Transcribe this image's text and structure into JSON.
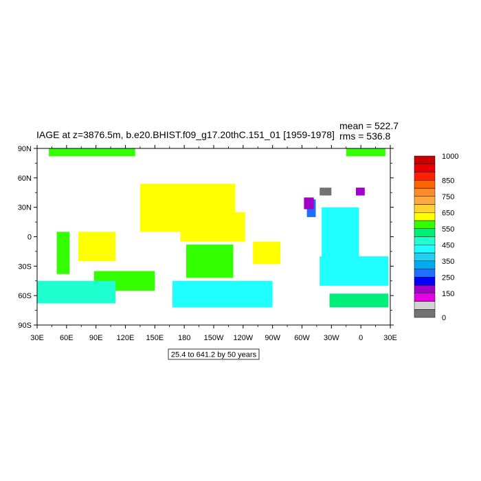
{
  "chart_data": {
    "type": "heatmap",
    "title": "IAGE at z=3876.5m, b.e20.BHIST.f09_g17.20thC.151_01 [1959-1978]",
    "stats": [
      "mean = 522.7",
      "rms = 536.8"
    ],
    "subtitle_box": "25.4 to 641.2 by 50 years",
    "x_range": [
      30,
      390
    ],
    "y_range": [
      -90,
      90
    ],
    "x_ticks": [
      {
        "value": 30,
        "label": "30E"
      },
      {
        "value": 60,
        "label": "60E"
      },
      {
        "value": 90,
        "label": "90E"
      },
      {
        "value": 120,
        "label": "120E"
      },
      {
        "value": 150,
        "label": "150E"
      },
      {
        "value": 180,
        "label": "180"
      },
      {
        "value": 210,
        "label": "150W"
      },
      {
        "value": 240,
        "label": "120W"
      },
      {
        "value": 270,
        "label": "90W"
      },
      {
        "value": 300,
        "label": "60W"
      },
      {
        "value": 330,
        "label": "30W"
      },
      {
        "value": 360,
        "label": "0"
      },
      {
        "value": 390,
        "label": "30E"
      }
    ],
    "y_ticks": [
      {
        "value": 90,
        "label": "90N"
      },
      {
        "value": 60,
        "label": "60N"
      },
      {
        "value": 30,
        "label": "30N"
      },
      {
        "value": 0,
        "label": "0"
      },
      {
        "value": -30,
        "label": "30S"
      },
      {
        "value": -60,
        "label": "60S"
      },
      {
        "value": -90,
        "label": "90S"
      }
    ],
    "colorbar": {
      "colors": [
        "#737373",
        "#d2d2d2",
        "#e600e6",
        "#a000c8",
        "#0000ff",
        "#1e6eff",
        "#00aaf0",
        "#20d0f0",
        "#20ffff",
        "#20ffd0",
        "#00ee7a",
        "#33ff00",
        "#ffff00",
        "#ffd232",
        "#ffaa40",
        "#ff8c2a",
        "#ff6400",
        "#ff2000",
        "#e60000",
        "#c80000"
      ],
      "labels": [
        {
          "index": 0,
          "text": "0"
        },
        {
          "index": 3,
          "text": "150"
        },
        {
          "index": 5,
          "text": "250"
        },
        {
          "index": 7,
          "text": "350"
        },
        {
          "index": 9,
          "text": "450"
        },
        {
          "index": 11,
          "text": "550"
        },
        {
          "index": 13,
          "text": "650"
        },
        {
          "index": 15,
          "text": "750"
        },
        {
          "index": 17,
          "text": "850"
        },
        {
          "index": 20,
          "text": "1000"
        }
      ]
    },
    "regions": [
      {
        "name": "arctic-west",
        "lon": [
          42,
          130
        ],
        "lat": [
          82,
          90
        ],
        "value": 575
      },
      {
        "name": "arctic-east",
        "lon": [
          345,
          385
        ],
        "lat": [
          82,
          90
        ],
        "value": 575
      },
      {
        "name": "north-pacific",
        "lon": [
          135,
          232
        ],
        "lat": [
          5,
          54
        ],
        "value": 640
      },
      {
        "name": "central-pacific",
        "lon": [
          176,
          242
        ],
        "lat": [
          -5,
          25
        ],
        "value": 640
      },
      {
        "name": "indian-ocean",
        "lon": [
          72,
          110
        ],
        "lat": [
          -25,
          5
        ],
        "value": 640
      },
      {
        "name": "south-pacific-green",
        "lon": [
          182,
          230
        ],
        "lat": [
          -42,
          -8
        ],
        "value": 565
      },
      {
        "name": "east-pacific",
        "lon": [
          250,
          278
        ],
        "lat": [
          -28,
          -5
        ],
        "value": 640
      },
      {
        "name": "s-atlantic-west",
        "lon": [
          50,
          63
        ],
        "lat": [
          -38,
          5
        ],
        "value": 565
      },
      {
        "name": "indian-south-green",
        "lon": [
          88,
          150
        ],
        "lat": [
          -55,
          -35
        ],
        "value": 565
      },
      {
        "name": "s-indian-cyan",
        "lon": [
          30,
          110
        ],
        "lat": [
          -68,
          -45
        ],
        "value": 450
      },
      {
        "name": "southern-ocean",
        "lon": [
          168,
          270
        ],
        "lat": [
          -72,
          -45
        ],
        "value": 430
      },
      {
        "name": "north-atlantic-cyan",
        "lon": [
          320,
          358
        ],
        "lat": [
          -30,
          30
        ],
        "value": 430
      },
      {
        "name": "south-atlantic",
        "lon": [
          318,
          388
        ],
        "lat": [
          -50,
          -20
        ],
        "value": 430
      },
      {
        "name": "weddell-green",
        "lon": [
          328,
          388
        ],
        "lat": [
          -72,
          -58
        ],
        "value": 520
      },
      {
        "name": "nw-atlantic-blue",
        "lon": [
          305,
          314
        ],
        "lat": [
          20,
          38
        ],
        "value": 260
      },
      {
        "name": "labrador-purple",
        "lon": [
          302,
          312
        ],
        "lat": [
          28,
          40
        ],
        "value": 180
      },
      {
        "name": "nordic-purple",
        "lon": [
          355,
          364
        ],
        "lat": [
          42,
          50
        ],
        "value": 180
      },
      {
        "name": "mediterranean-gray",
        "lon": [
          318,
          330
        ],
        "lat": [
          42,
          50
        ],
        "value": 20
      }
    ]
  }
}
